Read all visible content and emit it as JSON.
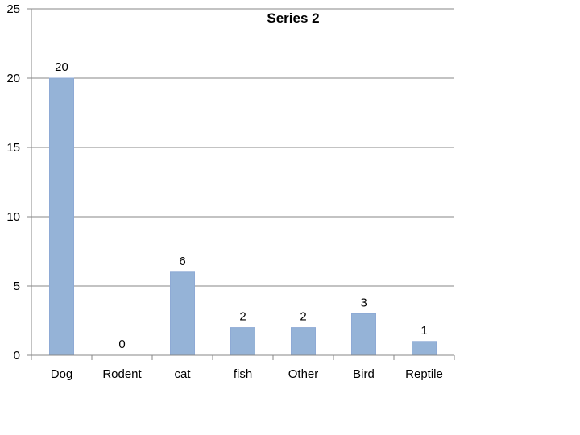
{
  "chart_data": {
    "type": "bar",
    "title": "Series 2",
    "xlabel": "",
    "ylabel": "",
    "categories": [
      "Dog",
      "Rodent",
      "cat",
      "fish",
      "Other",
      "Bird",
      "Reptile"
    ],
    "series": [
      {
        "values": [
          20,
          0,
          6,
          2,
          2,
          3,
          1
        ],
        "color": "#95b3d7"
      }
    ],
    "data_labels": [
      "20",
      "0",
      "6",
      "2",
      "2",
      "3",
      "1"
    ],
    "yticks": [
      "0",
      "5",
      "10",
      "15",
      "20",
      "25"
    ],
    "ytick_values": [
      0,
      5,
      10,
      15,
      20,
      25
    ],
    "ylim": [
      0,
      25
    ],
    "grid": true,
    "legend": "none"
  }
}
